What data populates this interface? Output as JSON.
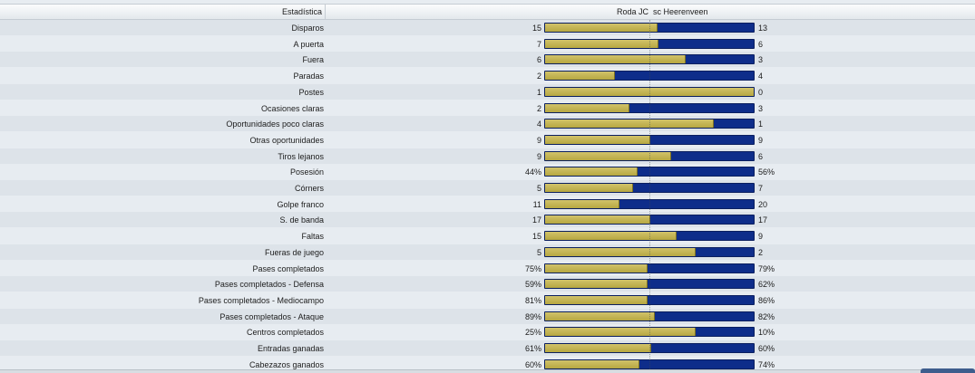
{
  "header": {
    "stat_col": "Estadística",
    "home_team": "Roda JC",
    "away_team": "sc Heerenveen"
  },
  "colors": {
    "home": "#c4b552",
    "away": "#0e2d8a"
  },
  "rows": [
    {
      "label": "Disparos",
      "home": "15",
      "away": "13",
      "home_share": 0.536
    },
    {
      "label": "A puerta",
      "home": "7",
      "away": "6",
      "home_share": 0.538
    },
    {
      "label": "Fuera",
      "home": "6",
      "away": "3",
      "home_share": 0.667
    },
    {
      "label": "Paradas",
      "home": "2",
      "away": "4",
      "home_share": 0.333
    },
    {
      "label": "Postes",
      "home": "1",
      "away": "0",
      "home_share": 1.0
    },
    {
      "label": "Ocasiones claras",
      "home": "2",
      "away": "3",
      "home_share": 0.4
    },
    {
      "label": "Oportunidades poco claras",
      "home": "4",
      "away": "1",
      "home_share": 0.8
    },
    {
      "label": "Otras oportunidades",
      "home": "9",
      "away": "9",
      "home_share": 0.5
    },
    {
      "label": "Tiros lejanos",
      "home": "9",
      "away": "6",
      "home_share": 0.6
    },
    {
      "label": "Posesión",
      "home": "44%",
      "away": "56%",
      "home_share": 0.44
    },
    {
      "label": "Córners",
      "home": "5",
      "away": "7",
      "home_share": 0.417
    },
    {
      "label": "Golpe franco",
      "home": "11",
      "away": "20",
      "home_share": 0.355
    },
    {
      "label": "S. de banda",
      "home": "17",
      "away": "17",
      "home_share": 0.5
    },
    {
      "label": "Faltas",
      "home": "15",
      "away": "9",
      "home_share": 0.625
    },
    {
      "label": "Fueras de juego",
      "home": "5",
      "away": "2",
      "home_share": 0.714
    },
    {
      "label": "Pases completados",
      "home": "75%",
      "away": "79%",
      "home_share": 0.487
    },
    {
      "label": "Pases completados - Defensa",
      "home": "59%",
      "away": "62%",
      "home_share": 0.488
    },
    {
      "label": "Pases completados - Mediocampo",
      "home": "81%",
      "away": "86%",
      "home_share": 0.485
    },
    {
      "label": "Pases completados - Ataque",
      "home": "89%",
      "away": "82%",
      "home_share": 0.52
    },
    {
      "label": "Centros completados",
      "home": "25%",
      "away": "10%",
      "home_share": 0.714
    },
    {
      "label": "Entradas ganadas",
      "home": "61%",
      "away": "60%",
      "home_share": 0.504
    },
    {
      "label": "Cabezazos ganados",
      "home": "60%",
      "away": "74%",
      "home_share": 0.448
    }
  ]
}
